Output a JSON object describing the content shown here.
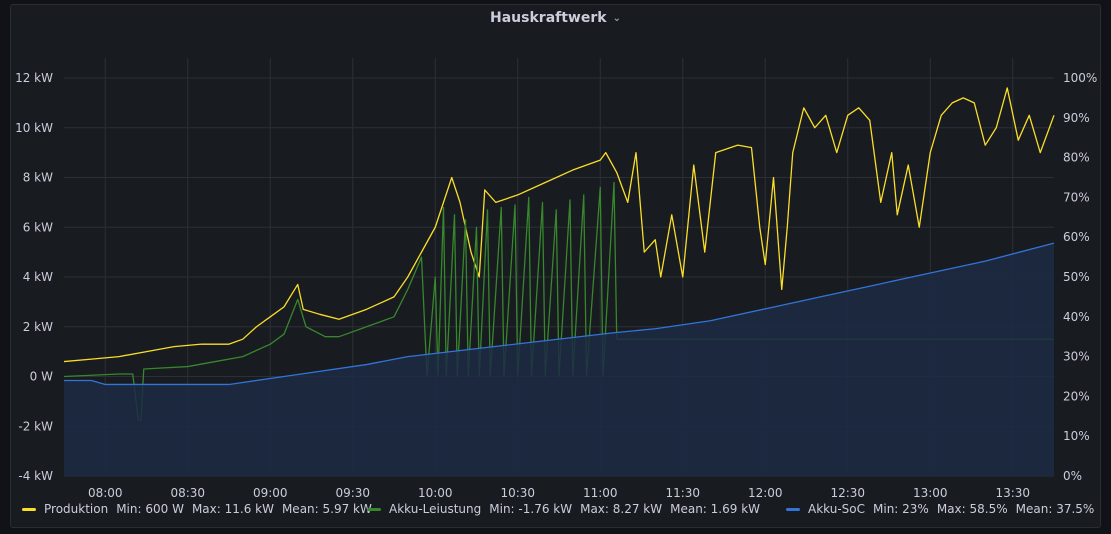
{
  "panel": {
    "title": "Hauskraftwerk"
  },
  "colors": {
    "produktion": "#fade2a",
    "akku_leistung": "#37872d",
    "akku_soc": "#3274d9",
    "grid": "#2c2f36",
    "axis_text": "#ccccdc"
  },
  "legend": [
    {
      "name": "Produktion",
      "color": "#fade2a",
      "min": "Min: 600 W",
      "max": "Max: 11.6 kW",
      "mean": "Mean: 5.97 kW"
    },
    {
      "name": "Akku-Leiustung",
      "color": "#37872d",
      "min": "Min: -1.76 kW",
      "max": "Max: 8.27 kW",
      "mean": "Mean: 1.69 kW"
    },
    {
      "name": "Akku-SoC",
      "color": "#3274d9",
      "min": "Min: 23%",
      "max": "Max: 58.5%",
      "mean": "Mean: 37.5%"
    }
  ],
  "chart_data": {
    "type": "line",
    "y_left": {
      "ticks": [
        "-4 kW",
        "-2 kW",
        "0 W",
        "2 kW",
        "4 kW",
        "6 kW",
        "8 kW",
        "10 kW",
        "12 kW"
      ],
      "range_kw": [
        -4,
        12
      ]
    },
    "y_right": {
      "ticks": [
        "0%",
        "10%",
        "20%",
        "30%",
        "40%",
        "50%",
        "60%",
        "70%",
        "80%",
        "90%",
        "100%"
      ],
      "range_pct": [
        0,
        100
      ]
    },
    "x": {
      "range": [
        "07:45",
        "13:45"
      ],
      "ticks": [
        "08:00",
        "08:30",
        "09:00",
        "09:30",
        "10:00",
        "10:30",
        "11:00",
        "11:30",
        "12:00",
        "12:30",
        "13:00",
        "13:30"
      ]
    },
    "grid": true,
    "series": [
      {
        "name": "Produktion",
        "unit": "kW",
        "axis": "left",
        "points": [
          [
            "07:45",
            0.6
          ],
          [
            "07:55",
            0.7
          ],
          [
            "08:05",
            0.8
          ],
          [
            "08:15",
            1.0
          ],
          [
            "08:25",
            1.2
          ],
          [
            "08:35",
            1.3
          ],
          [
            "08:45",
            1.3
          ],
          [
            "08:50",
            1.5
          ],
          [
            "08:55",
            2.0
          ],
          [
            "09:00",
            2.4
          ],
          [
            "09:05",
            2.8
          ],
          [
            "09:10",
            3.7
          ],
          [
            "09:12",
            2.7
          ],
          [
            "09:18",
            2.5
          ],
          [
            "09:25",
            2.3
          ],
          [
            "09:35",
            2.7
          ],
          [
            "09:45",
            3.2
          ],
          [
            "09:50",
            4.0
          ],
          [
            "09:55",
            5.0
          ],
          [
            "10:00",
            6.0
          ],
          [
            "10:03",
            7.0
          ],
          [
            "10:06",
            8.0
          ],
          [
            "10:09",
            7.0
          ],
          [
            "10:13",
            5.0
          ],
          [
            "10:16",
            4.0
          ],
          [
            "10:18",
            7.5
          ],
          [
            "10:22",
            7.0
          ],
          [
            "10:30",
            7.3
          ],
          [
            "10:40",
            7.8
          ],
          [
            "10:50",
            8.3
          ],
          [
            "11:00",
            8.7
          ],
          [
            "11:02",
            9.0
          ],
          [
            "11:06",
            8.2
          ],
          [
            "11:10",
            7.0
          ],
          [
            "11:13",
            9.0
          ],
          [
            "11:16",
            5.0
          ],
          [
            "11:20",
            5.5
          ],
          [
            "11:22",
            4.0
          ],
          [
            "11:26",
            6.5
          ],
          [
            "11:30",
            4.0
          ],
          [
            "11:34",
            8.5
          ],
          [
            "11:38",
            5.0
          ],
          [
            "11:42",
            9.0
          ],
          [
            "11:50",
            9.3
          ],
          [
            "11:55",
            9.2
          ],
          [
            "11:58",
            6.0
          ],
          [
            "12:00",
            4.5
          ],
          [
            "12:03",
            8.0
          ],
          [
            "12:06",
            3.5
          ],
          [
            "12:08",
            6.0
          ],
          [
            "12:10",
            9.0
          ],
          [
            "12:14",
            10.8
          ],
          [
            "12:18",
            10.0
          ],
          [
            "12:22",
            10.5
          ],
          [
            "12:26",
            9.0
          ],
          [
            "12:30",
            10.5
          ],
          [
            "12:34",
            10.8
          ],
          [
            "12:38",
            10.3
          ],
          [
            "12:42",
            7.0
          ],
          [
            "12:46",
            9.0
          ],
          [
            "12:48",
            6.5
          ],
          [
            "12:52",
            8.5
          ],
          [
            "12:56",
            6.0
          ],
          [
            "13:00",
            9.0
          ],
          [
            "13:04",
            10.5
          ],
          [
            "13:08",
            11.0
          ],
          [
            "13:12",
            11.2
          ],
          [
            "13:16",
            11.0
          ],
          [
            "13:20",
            9.3
          ],
          [
            "13:24",
            10.0
          ],
          [
            "13:28",
            11.6
          ],
          [
            "13:32",
            9.5
          ],
          [
            "13:36",
            10.5
          ],
          [
            "13:40",
            9.0
          ],
          [
            "13:45",
            10.5
          ]
        ]
      },
      {
        "name": "Akku-Leiustung",
        "unit": "kW",
        "axis": "left",
        "points": [
          [
            "07:45",
            0.0
          ],
          [
            "08:05",
            0.1
          ],
          [
            "08:10",
            0.1
          ],
          [
            "08:12",
            -1.76
          ],
          [
            "08:13",
            -1.76
          ],
          [
            "08:14",
            0.3
          ],
          [
            "08:30",
            0.4
          ],
          [
            "08:40",
            0.6
          ],
          [
            "08:50",
            0.8
          ],
          [
            "09:00",
            1.3
          ],
          [
            "09:05",
            1.7
          ],
          [
            "09:10",
            3.1
          ],
          [
            "09:13",
            2.0
          ],
          [
            "09:20",
            1.6
          ],
          [
            "09:25",
            1.6
          ],
          [
            "09:35",
            2.0
          ],
          [
            "09:45",
            2.4
          ],
          [
            "09:50",
            3.5
          ],
          [
            "09:55",
            4.8
          ],
          [
            "09:57",
            0.0
          ],
          [
            "10:00",
            4.0
          ],
          [
            "10:01",
            0.0
          ],
          [
            "10:03",
            6.8
          ],
          [
            "10:04",
            0.0
          ],
          [
            "10:07",
            6.5
          ],
          [
            "10:08",
            0.0
          ],
          [
            "10:11",
            6.3
          ],
          [
            "10:12",
            0.0
          ],
          [
            "10:15",
            6.0
          ],
          [
            "10:16",
            0.0
          ],
          [
            "10:19",
            6.7
          ],
          [
            "10:20",
            0.0
          ],
          [
            "10:24",
            6.8
          ],
          [
            "10:25",
            0.0
          ],
          [
            "10:29",
            6.9
          ],
          [
            "10:30",
            0.0
          ],
          [
            "10:34",
            7.2
          ],
          [
            "10:35",
            0.0
          ],
          [
            "10:39",
            7.0
          ],
          [
            "10:40",
            0.0
          ],
          [
            "10:44",
            6.7
          ],
          [
            "10:45",
            0.0
          ],
          [
            "10:49",
            7.1
          ],
          [
            "10:50",
            0.0
          ],
          [
            "10:54",
            7.3
          ],
          [
            "10:55",
            0.0
          ],
          [
            "11:00",
            7.6
          ],
          [
            "11:01",
            0.0
          ],
          [
            "11:05",
            7.8
          ],
          [
            "11:06",
            1.5
          ],
          [
            "13:45",
            1.5
          ]
        ]
      },
      {
        "name": "Akku-SoC",
        "unit": "%",
        "axis": "right",
        "points": [
          [
            "07:45",
            24
          ],
          [
            "07:55",
            24
          ],
          [
            "08:00",
            23
          ],
          [
            "08:45",
            23
          ],
          [
            "09:00",
            24.5
          ],
          [
            "09:15",
            26
          ],
          [
            "09:35",
            28
          ],
          [
            "09:50",
            30
          ],
          [
            "11:05",
            36
          ],
          [
            "11:20",
            37
          ],
          [
            "11:40",
            39
          ],
          [
            "12:00",
            42
          ],
          [
            "12:20",
            45
          ],
          [
            "12:40",
            48
          ],
          [
            "13:00",
            51
          ],
          [
            "13:20",
            54
          ],
          [
            "13:45",
            58.5
          ]
        ]
      }
    ]
  }
}
